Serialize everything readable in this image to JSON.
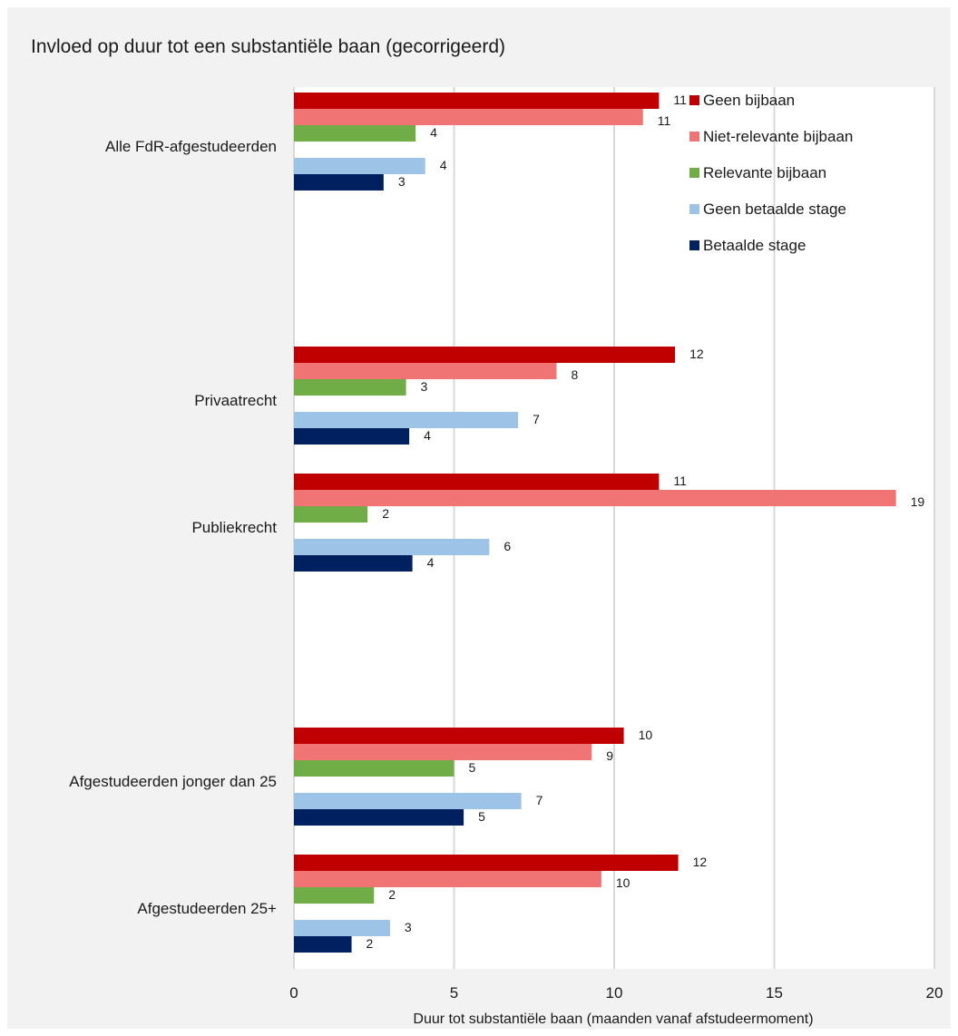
{
  "chart_data": {
    "type": "bar",
    "orientation": "horizontal",
    "title": "Invloed op duur tot een substantiële baan (gecorrigeerd)",
    "xlabel": "Duur tot substantiële baan (maanden vanaf afstudeermoment)",
    "ylabel": "",
    "xlim": [
      0,
      20
    ],
    "xticks": [
      "0",
      "5",
      "10",
      "15",
      "20"
    ],
    "grid": true,
    "legend_position": "top-right",
    "categories": [
      "Alle FdR-afgestudeerden",
      "Privaatrecht",
      "Publiekrecht",
      "Afgestudeerden jonger dan 25",
      "Afgestudeerden 25+"
    ],
    "series": [
      {
        "name": "Geen bijbaan",
        "color": "#c00000",
        "values": [
          11.4,
          11.9,
          11.4,
          10.3,
          12.0
        ],
        "labels": [
          "11",
          "12",
          "11",
          "10",
          "12"
        ]
      },
      {
        "name": "Niet-relevante bijbaan",
        "color": "#f07474",
        "values": [
          10.9,
          8.2,
          18.8,
          9.3,
          9.6
        ],
        "labels": [
          "11",
          "8",
          "19",
          "9",
          "10"
        ]
      },
      {
        "name": "Relevante bijbaan",
        "color": "#70ad47",
        "values": [
          3.8,
          3.5,
          2.3,
          5.0,
          2.5
        ],
        "labels": [
          "4",
          "3",
          "2",
          "5",
          "2"
        ]
      },
      {
        "name": "Geen betaalde stage",
        "color": "#9dc3e6",
        "values": [
          4.1,
          7.0,
          6.1,
          7.1,
          3.0
        ],
        "labels": [
          "4",
          "7",
          "6",
          "7",
          "3"
        ]
      },
      {
        "name": "Betaalde stage",
        "color": "#002060",
        "values": [
          2.8,
          3.6,
          3.7,
          5.3,
          1.8
        ],
        "labels": [
          "3",
          "4",
          "4",
          "5",
          "2"
        ]
      }
    ]
  }
}
